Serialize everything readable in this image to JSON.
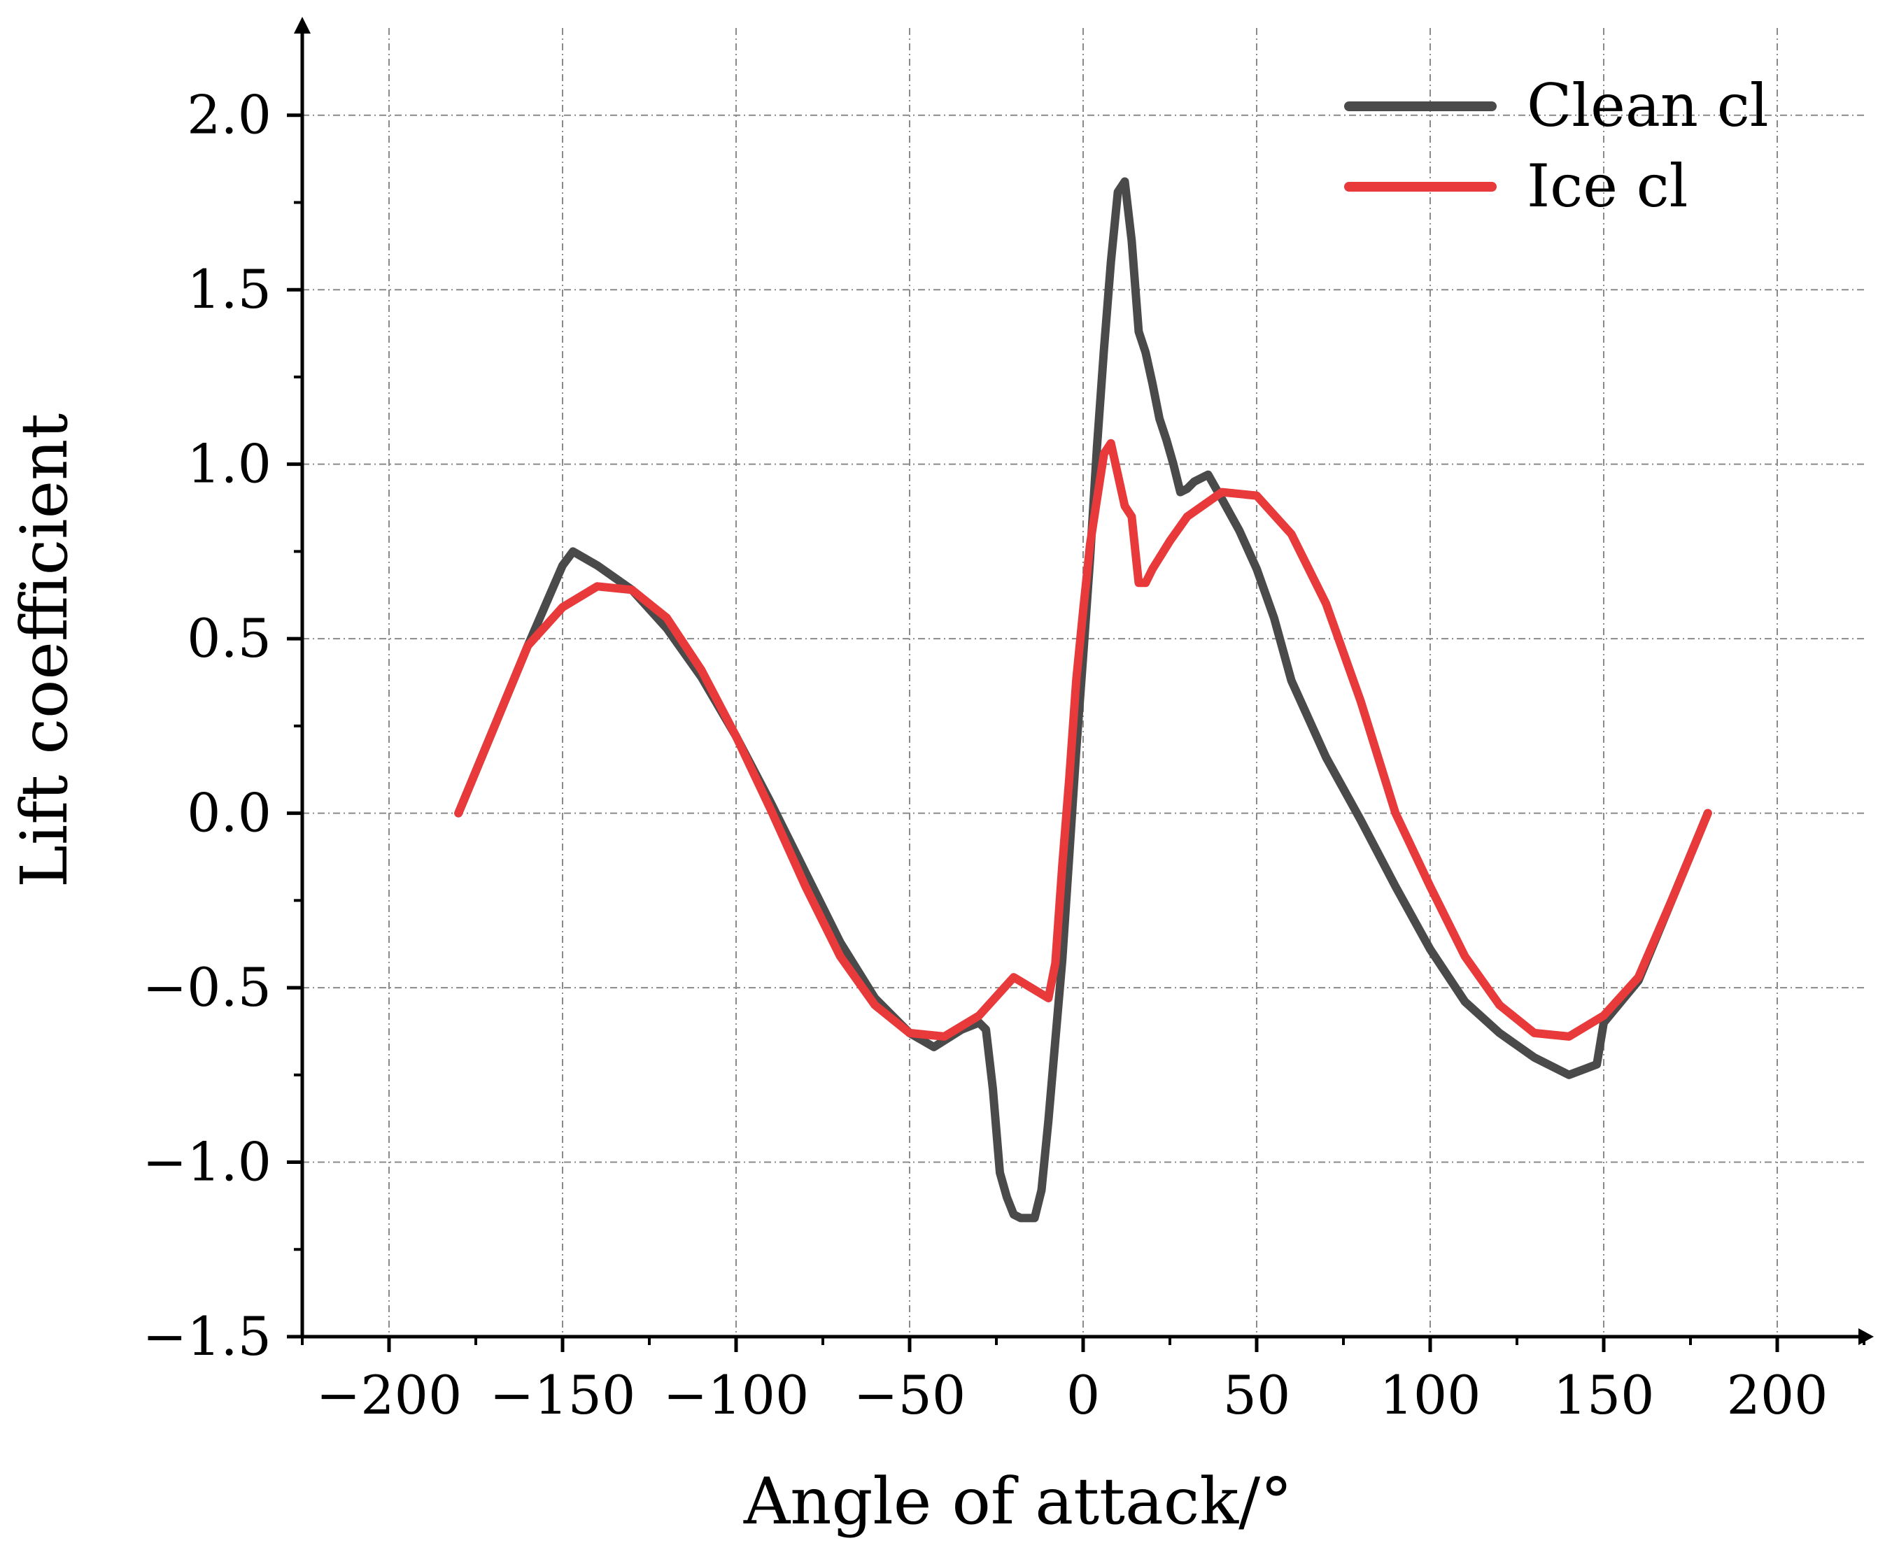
{
  "chart_data": {
    "type": "line",
    "title": "",
    "xlabel": "Angle of attack/°",
    "ylabel": "Lift coefficient",
    "xlim": [
      -225,
      225
    ],
    "ylim": [
      -1.5,
      2.25
    ],
    "x_ticks": [
      -200,
      -150,
      -100,
      -50,
      0,
      50,
      100,
      150,
      200
    ],
    "x_tick_labels": [
      "−200",
      "−150",
      "−100",
      "−50",
      "0",
      "50",
      "100",
      "150",
      "200"
    ],
    "y_ticks": [
      -1.5,
      -1.0,
      -0.5,
      0.0,
      0.5,
      1.0,
      1.5,
      2.0
    ],
    "y_tick_labels": [
      "−1.5",
      "−1.0",
      "−0.5",
      "0.0",
      "0.5",
      "1.0",
      "1.5",
      "2.0"
    ],
    "grid": true,
    "legend_position": "top-right",
    "series": [
      {
        "name": "Clean cl",
        "color": "#4a4a4a",
        "x": [
          -180,
          -170,
          -160,
          -150,
          -147,
          -140,
          -130,
          -120,
          -110,
          -100,
          -90,
          -80,
          -70,
          -60,
          -50,
          -43,
          -35,
          -30,
          -28,
          -26,
          -24,
          -22,
          -20,
          -18,
          -16,
          -14,
          -12,
          -10,
          -8,
          -6,
          -4,
          -2,
          0,
          2,
          4,
          6,
          8,
          10,
          12,
          14,
          16,
          18,
          20,
          22,
          24,
          26,
          28,
          30,
          32,
          34,
          36,
          40,
          45,
          50,
          55,
          60,
          70,
          80,
          90,
          100,
          110,
          120,
          130,
          140,
          148,
          150,
          160,
          170,
          180
        ],
        "y": [
          0.0,
          0.24,
          0.48,
          0.71,
          0.75,
          0.71,
          0.64,
          0.53,
          0.39,
          0.22,
          0.03,
          -0.17,
          -0.37,
          -0.53,
          -0.63,
          -0.67,
          -0.62,
          -0.6,
          -0.62,
          -0.79,
          -1.03,
          -1.1,
          -1.15,
          -1.16,
          -1.16,
          -1.16,
          -1.08,
          -0.88,
          -0.65,
          -0.42,
          -0.12,
          0.18,
          0.45,
          0.73,
          1.05,
          1.33,
          1.58,
          1.78,
          1.81,
          1.64,
          1.38,
          1.32,
          1.23,
          1.13,
          1.07,
          1.0,
          0.92,
          0.93,
          0.95,
          0.96,
          0.97,
          0.9,
          0.81,
          0.7,
          0.56,
          0.38,
          0.16,
          -0.02,
          -0.21,
          -0.39,
          -0.54,
          -0.63,
          -0.7,
          -0.75,
          -0.72,
          -0.6,
          -0.48,
          -0.24,
          0.0
        ]
      },
      {
        "name": "Ice cl",
        "color": "#e8393b",
        "x": [
          -180,
          -170,
          -160,
          -150,
          -140,
          -130,
          -120,
          -110,
          -100,
          -90,
          -80,
          -70,
          -60,
          -50,
          -40,
          -30,
          -20,
          -10,
          -8,
          -6,
          -4,
          -2,
          0,
          2,
          4,
          6,
          8,
          10,
          12,
          14,
          16,
          18,
          20,
          25,
          30,
          40,
          50,
          60,
          70,
          80,
          90,
          100,
          110,
          120,
          130,
          140,
          150,
          160,
          170,
          180
        ],
        "y": [
          0.0,
          0.24,
          0.48,
          0.59,
          0.65,
          0.64,
          0.56,
          0.41,
          0.22,
          0.01,
          -0.21,
          -0.41,
          -0.55,
          -0.63,
          -0.64,
          -0.58,
          -0.47,
          -0.53,
          -0.43,
          -0.15,
          0.1,
          0.38,
          0.58,
          0.77,
          0.9,
          1.03,
          1.06,
          0.97,
          0.88,
          0.85,
          0.66,
          0.66,
          0.7,
          0.78,
          0.85,
          0.92,
          0.91,
          0.8,
          0.6,
          0.32,
          0.0,
          -0.21,
          -0.41,
          -0.55,
          -0.63,
          -0.64,
          -0.58,
          -0.47,
          -0.24,
          0.0
        ]
      }
    ]
  }
}
